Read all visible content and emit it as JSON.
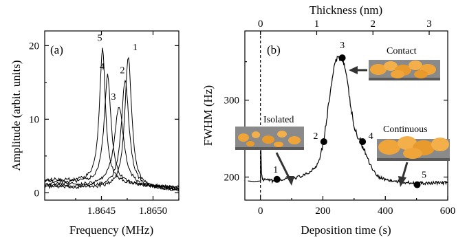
{
  "chart_data": [
    {
      "panel_label": "(a)",
      "type": "line",
      "xlabel": "Frequency (MHz)",
      "ylabel": "Amplitude (arbit. units)",
      "xlim": [
        1.86395,
        1.86525
      ],
      "ylim": [
        -1,
        22
      ],
      "xticks": [
        1.8645,
        1.865
      ],
      "xtick_labels": [
        "1.8645",
        "1.8650"
      ],
      "yticks": [
        0,
        10,
        20
      ],
      "ytick_labels": [
        "0",
        "10",
        "20"
      ],
      "series": [
        {
          "name": "1",
          "center": 1.86476,
          "peak": 18.0,
          "width": 8e-05,
          "baseline": 0.8
        },
        {
          "name": "2",
          "center": 1.86473,
          "peak": 14.7,
          "width": 9e-05,
          "baseline": 1.0
        },
        {
          "name": "3",
          "center": 1.86467,
          "peak": 10.9,
          "width": 0.00011,
          "baseline": 1.2
        },
        {
          "name": "4",
          "center": 1.86456,
          "peak": 14.8,
          "width": 8e-05,
          "baseline": 1.6
        },
        {
          "name": "5",
          "center": 1.86451,
          "peak": 18.3,
          "width": 7e-05,
          "baseline": 1.8
        }
      ]
    },
    {
      "panel_label": "(b)",
      "type": "line",
      "xlabel": "Deposition time (s)",
      "ylabel": "FWHM (Hz)",
      "x2label": "Thickness (nm)",
      "xlim": [
        -50,
        600
      ],
      "ylim": [
        170,
        390
      ],
      "xticks": [
        0,
        200,
        400,
        600
      ],
      "xtick_labels": [
        "0",
        "200",
        "400",
        "600"
      ],
      "yticks": [
        200,
        300
      ],
      "ytick_labels": [
        "200",
        "300"
      ],
      "x2ticks": [
        0,
        1,
        2,
        3
      ],
      "x2tick_labels": [
        "0",
        "1",
        "2",
        "3"
      ],
      "x2_per_second": 0.00555,
      "dashed_line_x": 0,
      "trace": {
        "x": [
          -40,
          -20,
          0,
          1,
          3,
          8,
          20,
          40,
          60,
          80,
          100,
          120,
          140,
          160,
          180,
          190,
          200,
          210,
          220,
          230,
          240,
          250,
          260,
          265,
          270,
          280,
          290,
          300,
          310,
          320,
          330,
          340,
          350,
          360,
          370,
          380,
          400,
          420,
          440,
          460,
          480,
          500,
          520,
          540,
          560,
          580,
          600
        ],
        "y": [
          195,
          194,
          195,
          248,
          205,
          196,
          196,
          195,
          196,
          197,
          198,
          200,
          202,
          207,
          215,
          225,
          243,
          268,
          300,
          328,
          350,
          355,
          356,
          352,
          344,
          318,
          290,
          265,
          253,
          247,
          238,
          228,
          218,
          210,
          204,
          200,
          197,
          195,
          194,
          193,
          193,
          192,
          192,
          192,
          193,
          192,
          193
        ]
      },
      "points": [
        {
          "label": "1",
          "x": 53,
          "y": 197
        },
        {
          "label": "2",
          "x": 203,
          "y": 246
        },
        {
          "label": "3",
          "x": 262,
          "y": 355
        },
        {
          "label": "4",
          "x": 327,
          "y": 246
        },
        {
          "label": "5",
          "x": 502,
          "y": 190
        }
      ],
      "annotations": [
        "Isolated",
        "Contact",
        "Continuous"
      ]
    }
  ]
}
